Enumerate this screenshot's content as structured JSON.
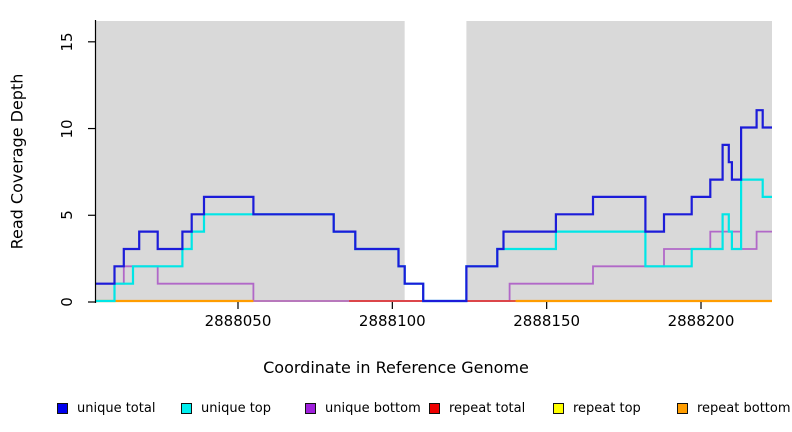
{
  "chart_data": {
    "type": "line",
    "subtype": "step-coverage",
    "title": "",
    "xlabel": "Coordinate in Reference Genome",
    "ylabel": "Read Coverage Depth",
    "xlim": [
      2888004,
      2888223
    ],
    "ylim": [
      0,
      16.2
    ],
    "x_ticks": [
      2888050,
      2888100,
      2888150,
      2888200
    ],
    "y_ticks": [
      0,
      5,
      10,
      15
    ],
    "grid": false,
    "plot_bg": "#d9d9d9",
    "page_bg": "#ffffff",
    "axis_color": "#000000",
    "no_data_region": {
      "from": 2888104,
      "to": 2888124,
      "color": "#ffffff"
    },
    "legend_position": "bottom",
    "series": [
      {
        "name": "unique total",
        "color": "#1c1cd9",
        "legend_color": "#0000ee",
        "width": 2.2,
        "draw_index": 5,
        "segments": [
          [
            [
              2888004,
              1
            ],
            [
              2888010,
              2
            ],
            [
              2888013,
              3
            ],
            [
              2888018,
              4
            ],
            [
              2888024,
              3
            ],
            [
              2888032,
              4
            ],
            [
              2888035,
              5
            ],
            [
              2888039,
              6
            ],
            [
              2888055,
              5
            ],
            [
              2888081,
              4
            ],
            [
              2888088,
              3
            ],
            [
              2888102,
              2
            ],
            [
              2888104,
              1
            ],
            [
              2888110,
              0
            ],
            [
              2888124,
              2
            ],
            [
              2888134,
              3
            ],
            [
              2888136,
              4
            ],
            [
              2888153,
              5
            ],
            [
              2888165,
              6
            ],
            [
              2888182,
              4
            ],
            [
              2888188,
              5
            ],
            [
              2888197,
              6
            ],
            [
              2888203,
              7
            ],
            [
              2888207,
              9
            ],
            [
              2888209,
              8
            ],
            [
              2888210,
              7
            ],
            [
              2888213,
              10
            ],
            [
              2888218,
              11
            ],
            [
              2888220,
              10
            ],
            [
              2888223,
              10
            ]
          ]
        ]
      },
      {
        "name": "unique top",
        "color": "#00e6e6",
        "legend_color": "#00eeee",
        "width": 2.2,
        "draw_index": 4,
        "segments": [
          [
            [
              2888004,
              0
            ],
            [
              2888010,
              1
            ],
            [
              2888016,
              2
            ],
            [
              2888032,
              3
            ],
            [
              2888035,
              4
            ],
            [
              2888039,
              5
            ],
            [
              2888081,
              4
            ],
            [
              2888088,
              3
            ],
            [
              2888102,
              2
            ],
            [
              2888104,
              1
            ],
            [
              2888110,
              0
            ],
            [
              2888124,
              2
            ],
            [
              2888134,
              3
            ],
            [
              2888153,
              4
            ],
            [
              2888182,
              2
            ],
            [
              2888197,
              3
            ],
            [
              2888207,
              5
            ],
            [
              2888209,
              4
            ],
            [
              2888210,
              3
            ],
            [
              2888213,
              7
            ],
            [
              2888220,
              6
            ],
            [
              2888223,
              6
            ]
          ]
        ]
      },
      {
        "name": "unique bottom",
        "color": "#b168c8",
        "legend_color": "#a020dd",
        "width": 1.8,
        "draw_index": 1,
        "segments": [
          [
            [
              2888004,
              1
            ],
            [
              2888013,
              2
            ],
            [
              2888024,
              1
            ],
            [
              2888055,
              0
            ],
            [
              2888138,
              1
            ],
            [
              2888165,
              2
            ],
            [
              2888188,
              3
            ],
            [
              2888203,
              4
            ],
            [
              2888213,
              3
            ],
            [
              2888218,
              4
            ],
            [
              2888223,
              4
            ]
          ]
        ]
      },
      {
        "name": "repeat total",
        "color": "#e03c3c",
        "legend_color": "#ee0000",
        "width": 1.8,
        "draw_index": 2,
        "segments": [
          [
            [
              2888086,
              0
            ],
            [
              2888140,
              0
            ]
          ]
        ]
      },
      {
        "name": "repeat top",
        "color": "#ffff00",
        "legend_color": "#ffff00",
        "width": 1.5,
        "draw_index": 0,
        "segments": [
          [
            [
              2888004,
              0
            ],
            [
              2888223,
              0
            ]
          ]
        ]
      },
      {
        "name": "repeat bottom",
        "color": "#ff9d00",
        "legend_color": "#ff9d00",
        "width": 2.2,
        "draw_index": 3,
        "segments": [
          [
            [
              2888004,
              0
            ],
            [
              2888055,
              0
            ]
          ],
          [
            [
              2888140,
              0
            ],
            [
              2888223,
              0
            ]
          ]
        ]
      }
    ]
  },
  "layout_note": "read coverage depth step plot with no-data white band"
}
